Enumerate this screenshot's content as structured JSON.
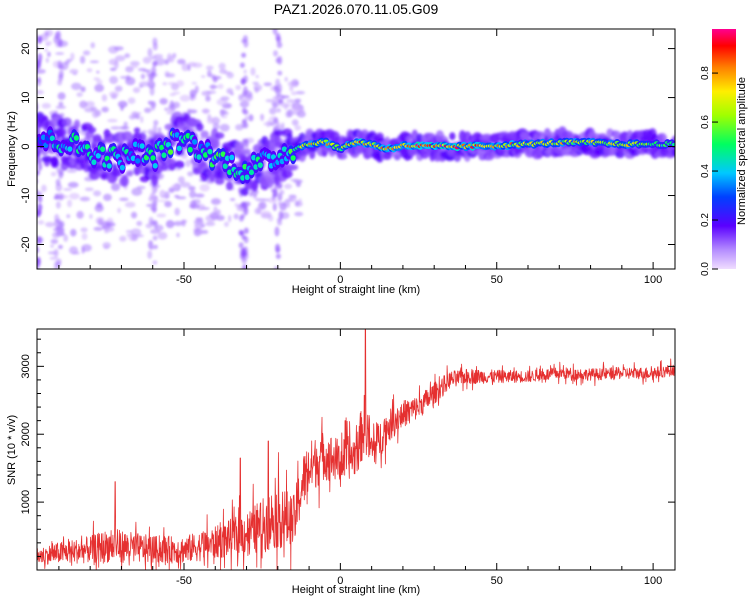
{
  "page_title": "PAZ1.2026.070.11.05.G09",
  "chart_data": [
    {
      "type": "heatmap",
      "xlabel": "Height of straight line (km)",
      "ylabel": "Frequency (Hz)",
      "xlim": [
        -97,
        107
      ],
      "ylim": [
        -25,
        24
      ],
      "xticks": [
        -50,
        0,
        50,
        100
      ],
      "yticks": [
        -20,
        -10,
        0,
        10,
        20
      ],
      "colorbar": {
        "label": "Normalized spectral amplitude",
        "range": [
          0.0,
          0.98
        ],
        "ticks": [
          0.0,
          0.2,
          0.4,
          0.6,
          0.8
        ],
        "tick_labels": [
          "0.0",
          "0.2",
          "0.4",
          "0.6",
          "0.8"
        ]
      },
      "ridge": {
        "description": "Dominant frequency track vs height",
        "x": [
          -97,
          -90,
          -85,
          -80,
          -75,
          -70,
          -65,
          -60,
          -55,
          -50,
          -45,
          -40,
          -35,
          -30,
          -28,
          -25,
          -20,
          -15,
          -10,
          -5,
          0,
          5,
          10,
          15,
          20,
          30,
          40,
          50,
          60,
          70,
          80,
          90,
          100,
          107
        ],
        "y": [
          1.5,
          1.0,
          0.5,
          -1.0,
          -2.0,
          -2.5,
          -1.0,
          -2.5,
          0.5,
          1.5,
          -0.5,
          -2.0,
          -3.5,
          -5.0,
          -4.0,
          -3.5,
          -2.0,
          -0.5,
          0.5,
          1.0,
          -0.5,
          1.0,
          0.5,
          -0.5,
          0.2,
          0.0,
          0.0,
          0.2,
          0.5,
          0.8,
          0.8,
          0.5,
          0.5,
          0.5
        ],
        "amplitude": [
          0.35,
          0.45,
          0.5,
          0.55,
          0.5,
          0.5,
          0.45,
          0.55,
          0.55,
          0.5,
          0.45,
          0.55,
          0.55,
          0.55,
          0.5,
          0.5,
          0.45,
          0.55,
          0.8,
          0.9,
          0.6,
          0.95,
          0.8,
          0.85,
          0.95,
          0.95,
          0.9,
          0.85,
          0.75,
          0.75,
          0.75,
          0.75,
          0.65,
          0.6
        ]
      }
    },
    {
      "type": "line",
      "xlabel": "Height of straight line (km)",
      "ylabel": "SNR (10 * v/v)",
      "xlim": [
        -97,
        107
      ],
      "ylim": [
        0,
        3550
      ],
      "xticks": [
        -50,
        0,
        50,
        100
      ],
      "yticks": [
        1000,
        2000,
        3000
      ],
      "color": "#e53030",
      "series": [
        {
          "name": "SNR",
          "x": [
            -97,
            -90,
            -80,
            -75,
            -70,
            -60,
            -50,
            -40,
            -30,
            -25,
            -20,
            -15,
            -12,
            -10,
            -5,
            0,
            5,
            8,
            10,
            15,
            20,
            25,
            30,
            35,
            40,
            50,
            60,
            70,
            80,
            90,
            100,
            107
          ],
          "y": [
            200,
            250,
            300,
            350,
            350,
            300,
            300,
            400,
            550,
            650,
            800,
            700,
            1300,
            1500,
            1700,
            1600,
            1700,
            2200,
            1750,
            2100,
            2300,
            2400,
            2600,
            2800,
            2850,
            2850,
            2850,
            2900,
            2880,
            2900,
            2900,
            2950
          ],
          "spread": [
            150,
            200,
            250,
            300,
            300,
            250,
            250,
            300,
            400,
            500,
            600,
            500,
            500,
            500,
            450,
            400,
            400,
            600,
            400,
            300,
            250,
            220,
            200,
            160,
            140,
            120,
            110,
            110,
            110,
            110,
            110,
            110
          ]
        }
      ],
      "spikes": [
        {
          "x": 8.0,
          "y": 3550
        },
        {
          "x": -72.0,
          "y": 1300
        },
        {
          "x": -32.0,
          "y": 1650
        },
        {
          "x": -23.0,
          "y": 1900
        },
        {
          "x": 1.5,
          "y": 2200
        }
      ]
    }
  ]
}
